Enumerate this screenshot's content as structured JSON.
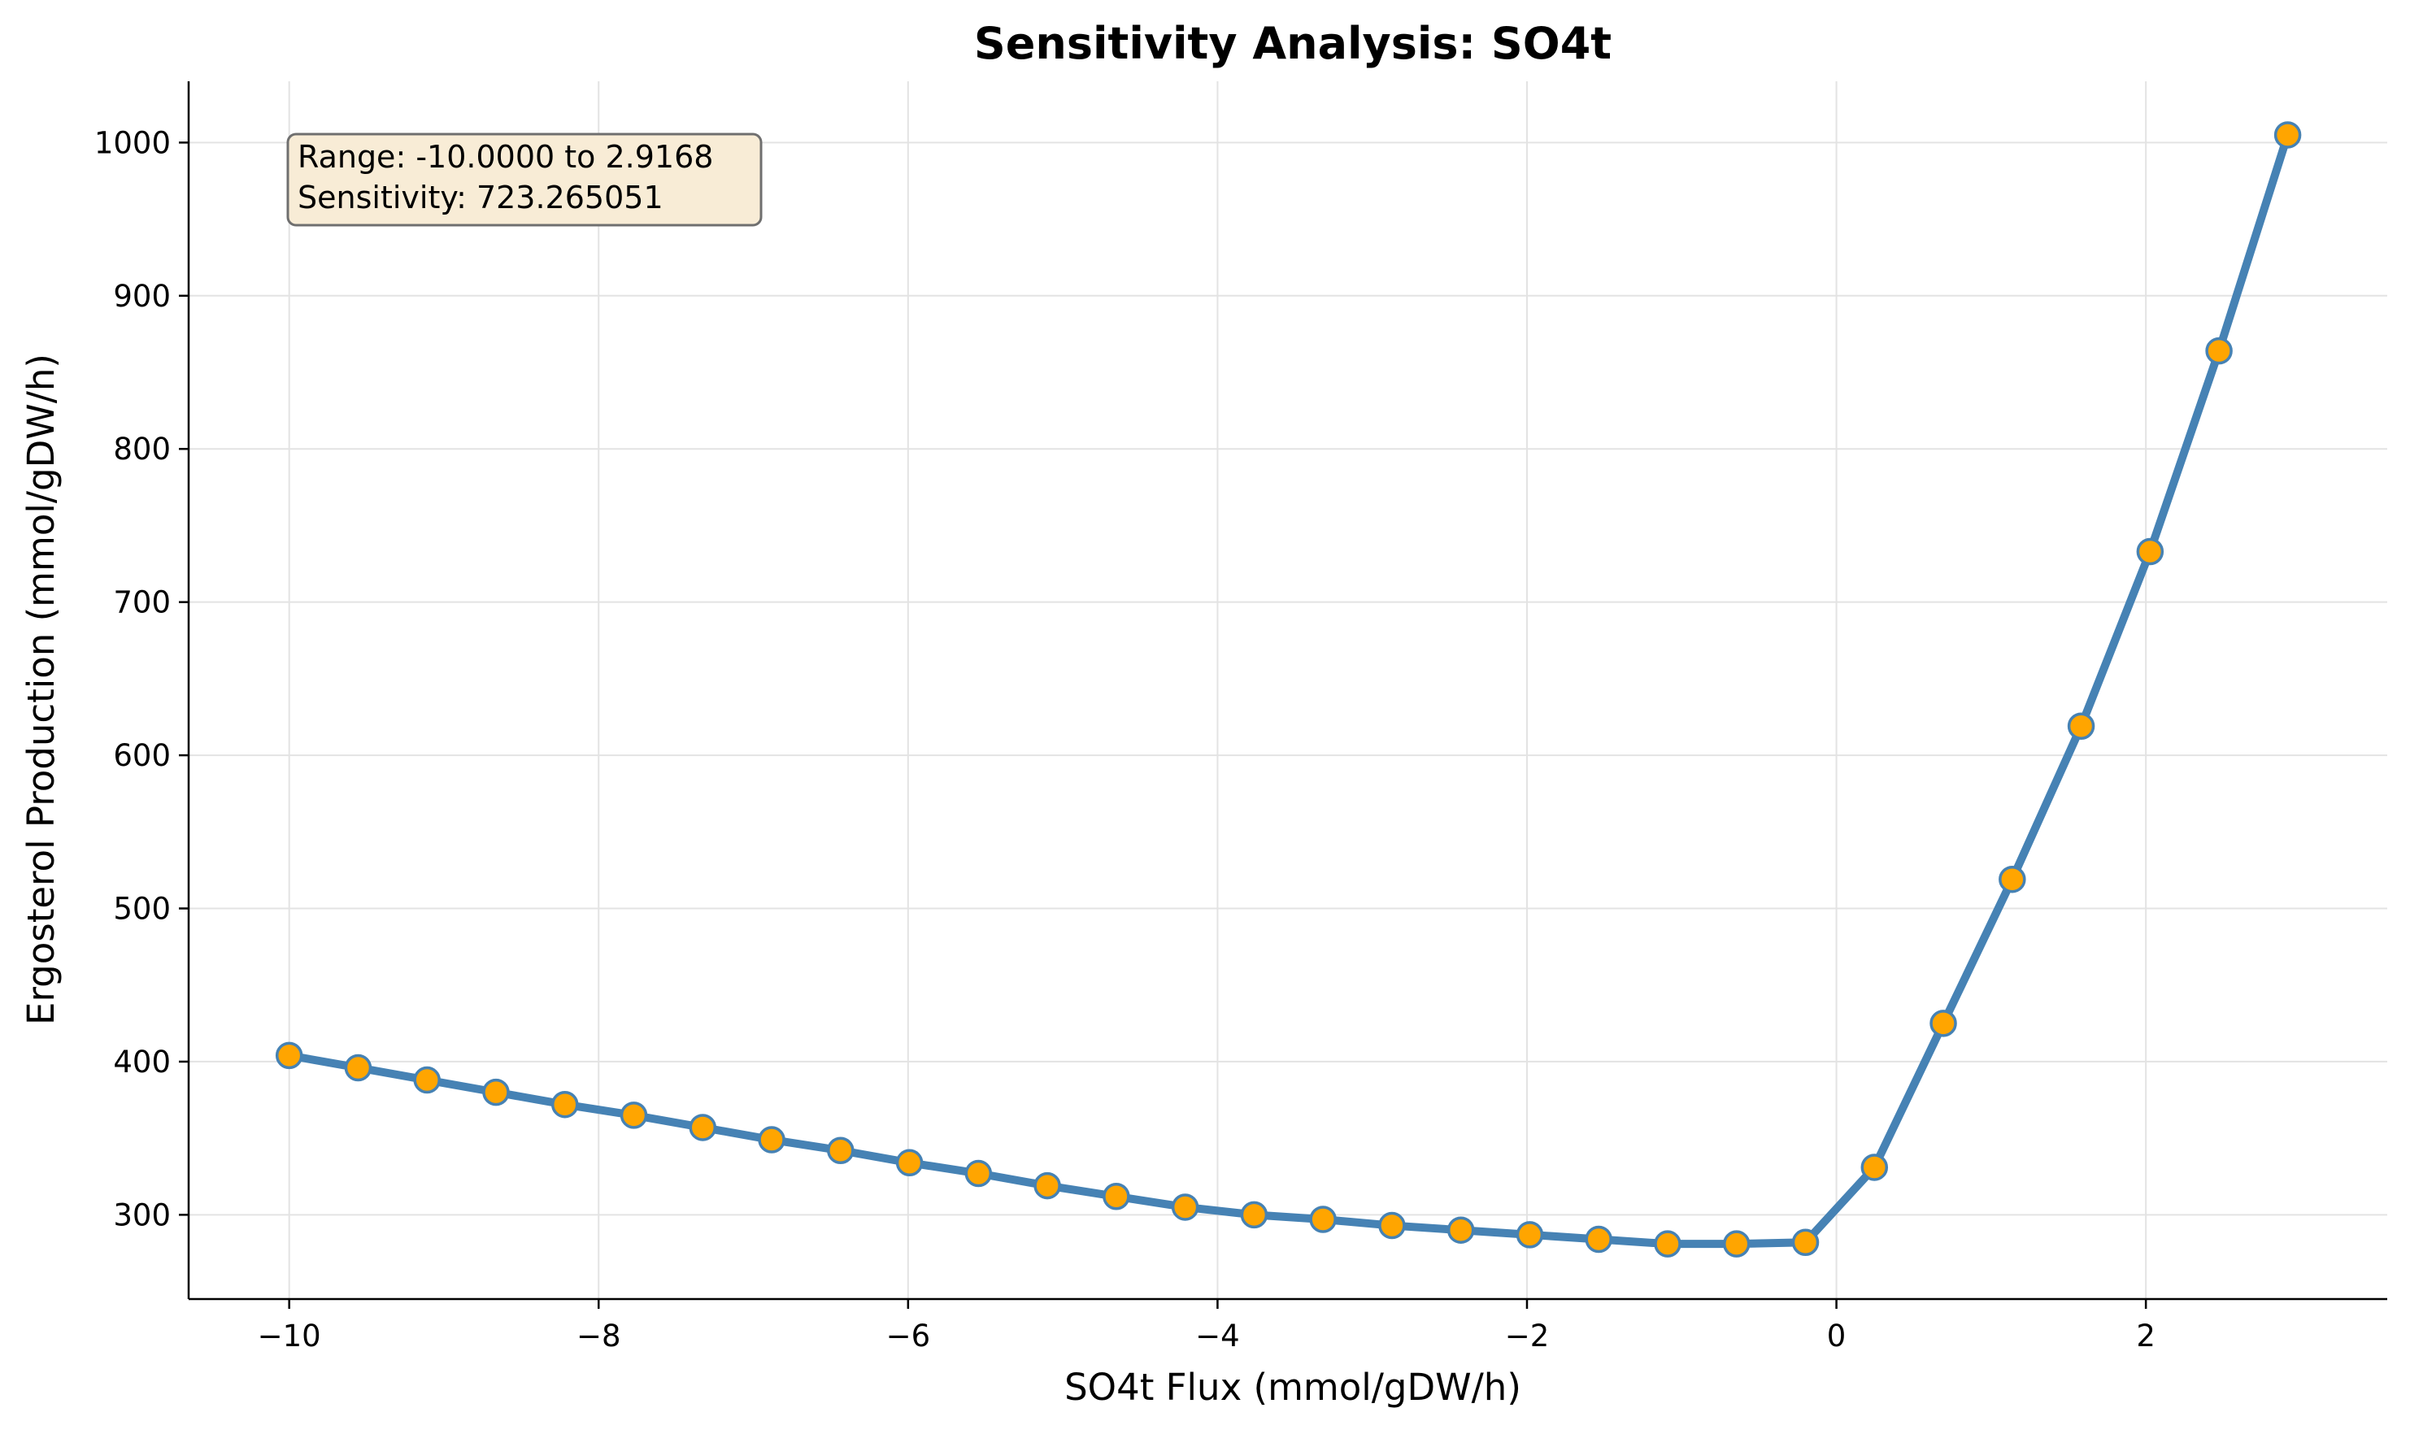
{
  "chart_data": {
    "type": "line",
    "title": "Sensitivity Analysis: SO4t",
    "xlabel": "SO4t Flux (mmol/gDW/h)",
    "ylabel": "Ergosterol Production (mmol/gDW/h)",
    "xlim": [
      -10.65,
      3.56
    ],
    "ylim": [
      245,
      1040
    ],
    "xticks": [
      -10,
      -8,
      -6,
      -4,
      -2,
      0,
      2
    ],
    "xtick_labels": [
      "−10",
      "−8",
      "−6",
      "−4",
      "−2",
      "0",
      "2"
    ],
    "yticks": [
      300,
      400,
      500,
      600,
      700,
      800,
      900,
      1000
    ],
    "ytick_labels": [
      "300",
      "400",
      "500",
      "600",
      "700",
      "800",
      "900",
      "1000"
    ],
    "grid": true,
    "line_color": "#4682b4",
    "marker_color": "#ffa500",
    "series": [
      {
        "x": [
          -10.0,
          -9.5545,
          -9.1091,
          -8.6636,
          -8.2182,
          -7.7727,
          -7.3273,
          -6.8818,
          -6.4364,
          -5.9909,
          -5.5455,
          -5.1,
          -4.6545,
          -4.2091,
          -3.7636,
          -3.3182,
          -2.8727,
          -2.4273,
          -1.9818,
          -1.5364,
          -1.0909,
          -0.6455,
          -0.2,
          0.2455,
          0.6909,
          1.1364,
          1.5818,
          2.0273,
          2.4727,
          2.9168
        ],
        "values": [
          404,
          396,
          388,
          380,
          372,
          365,
          357,
          349,
          342,
          334,
          327,
          319,
          312,
          305,
          300,
          297,
          293,
          290,
          287,
          284,
          281,
          281,
          282,
          331,
          425,
          519,
          619,
          733,
          864,
          1005
        ]
      }
    ],
    "annotation": {
      "line1": "Range: -10.0000 to 2.9168",
      "line2": "Sensitivity: 723.265051"
    }
  }
}
